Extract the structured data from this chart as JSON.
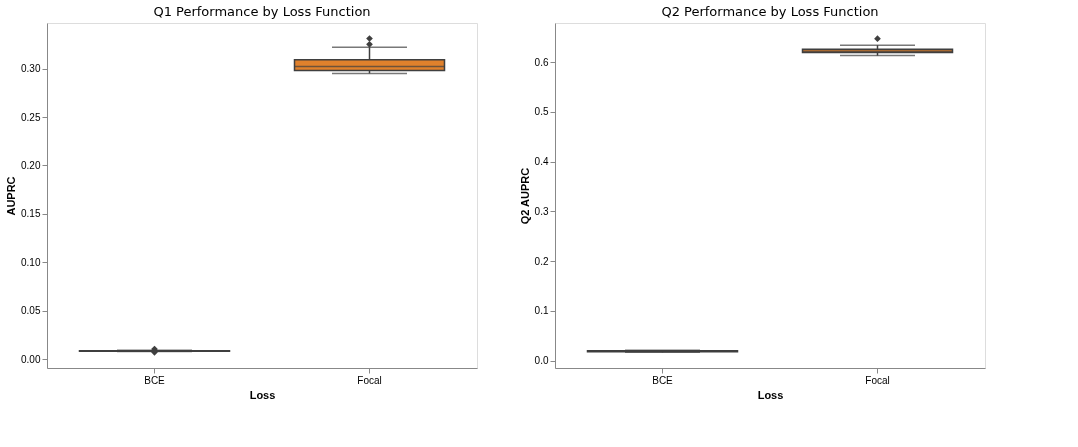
{
  "chart_data": [
    {
      "type": "box",
      "title": "Q1 Performance by Loss Function",
      "xlabel": "Loss",
      "ylabel": "AUPRC",
      "categories": [
        "BCE",
        "Focal"
      ],
      "colors": [
        "#3274a1",
        "#e1812c"
      ],
      "boxes": [
        {
          "low": 0.008,
          "q1": 0.0083,
          "median": 0.0086,
          "q3": 0.0089,
          "high": 0.0093,
          "outliers": [
            0.0105,
            0.0072
          ]
        },
        {
          "low": 0.295,
          "q1": 0.298,
          "median": 0.302,
          "q3": 0.309,
          "high": 0.322,
          "outliers": [
            0.325,
            0.331
          ]
        }
      ],
      "ylim": [
        -0.009,
        0.347
      ],
      "yticks": [
        {
          "value": 0,
          "label": "0.00"
        },
        0.05,
        {
          "value": 0.1,
          "label": "0.10"
        },
        0.15,
        {
          "value": 0.2,
          "label": "0.20"
        },
        0.25,
        {
          "value": 0.3,
          "label": "0.30"
        }
      ],
      "grid": false,
      "marker": "diamond"
    },
    {
      "type": "box",
      "title": "Q2 Performance by Loss Function",
      "xlabel": "Loss",
      "ylabel": "Q2 AUPRC",
      "categories": [
        "BCE",
        "Focal"
      ],
      "colors": [
        "#3274a1",
        "#e1812c"
      ],
      "boxes": [
        {
          "low": 0.017,
          "q1": 0.018,
          "median": 0.019,
          "q3": 0.02,
          "high": 0.021
        },
        {
          "low": 0.613,
          "q1": 0.619,
          "median": 0.622,
          "q3": 0.626,
          "high": 0.634,
          "outliers": [
            0.647
          ]
        }
      ],
      "ylim": [
        -0.0145,
        0.6785
      ],
      "yticks": [
        {
          "value": 0,
          "label": "0.0"
        },
        0.1,
        0.2,
        0.3,
        0.4,
        0.5,
        0.6
      ],
      "grid": false,
      "marker": "diamond"
    }
  ]
}
